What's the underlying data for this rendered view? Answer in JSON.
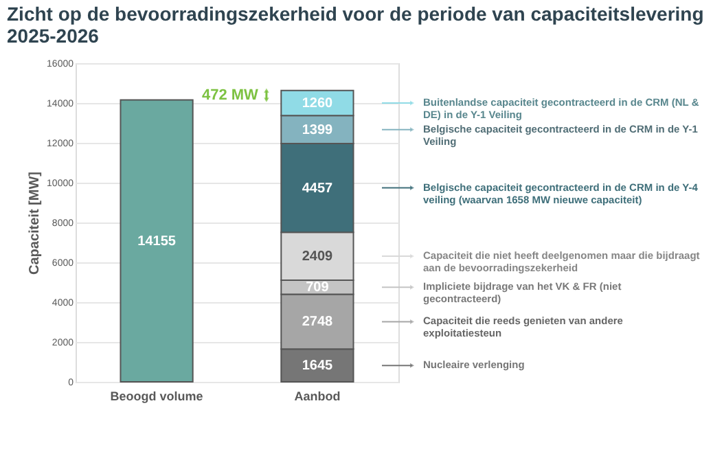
{
  "chart_data": {
    "type": "bar",
    "title": "Zicht op de bevoorradingszekerheid voor de periode van capaciteitslevering 2025-2026",
    "ylabel": "Capaciteit [MW]",
    "categories": [
      "Beoogd volume",
      "Aanbod"
    ],
    "stacked": true,
    "data_labels": true,
    "ylim": [
      0,
      16000
    ],
    "yticks": [
      0,
      2000,
      4000,
      6000,
      8000,
      10000,
      12000,
      14000,
      16000
    ],
    "grid": "y",
    "legend": "right",
    "series": [
      {
        "color": "#6aa9a0",
        "values": [
          14155,
          null
        ]
      },
      {
        "name": "Nucleaire verlenging",
        "color": "#767676",
        "values": [
          null,
          1645
        ]
      },
      {
        "name": "Capaciteit die reeds genieten van andere exploitatiesteun",
        "color": "#a6a6a6",
        "values": [
          null,
          2748
        ]
      },
      {
        "name": "Impliciete bijdrage van het VK & FR (niet gecontracteerd)",
        "color": "#c4c4c4",
        "values": [
          null,
          709
        ]
      },
      {
        "name": "Capaciteit die niet heeft deelgenomen maar die bijdraagt aan de bevoorradingszekerheid",
        "color": "#d9d9d9",
        "values": [
          null,
          2409
        ]
      },
      {
        "name": "Belgische capaciteit gecontracteerd in de CRM in de Y-4 veiling (waarvan 1658 MW nieuwe capaciteit)",
        "color": "#3f6f7a",
        "values": [
          null,
          4457
        ]
      },
      {
        "name": "Belgische capaciteit gecontracteerd in de CRM in de Y-1 Veiling",
        "color": "#84b3bf",
        "values": [
          null,
          1399
        ]
      },
      {
        "name": "Buitenlandse capaciteit gecontracteerd in de CRM (NL & DE) in de Y-1 Veiling",
        "color": "#90dbe6",
        "values": [
          null,
          1260
        ]
      }
    ],
    "annotations": [
      "472 MW"
    ]
  }
}
